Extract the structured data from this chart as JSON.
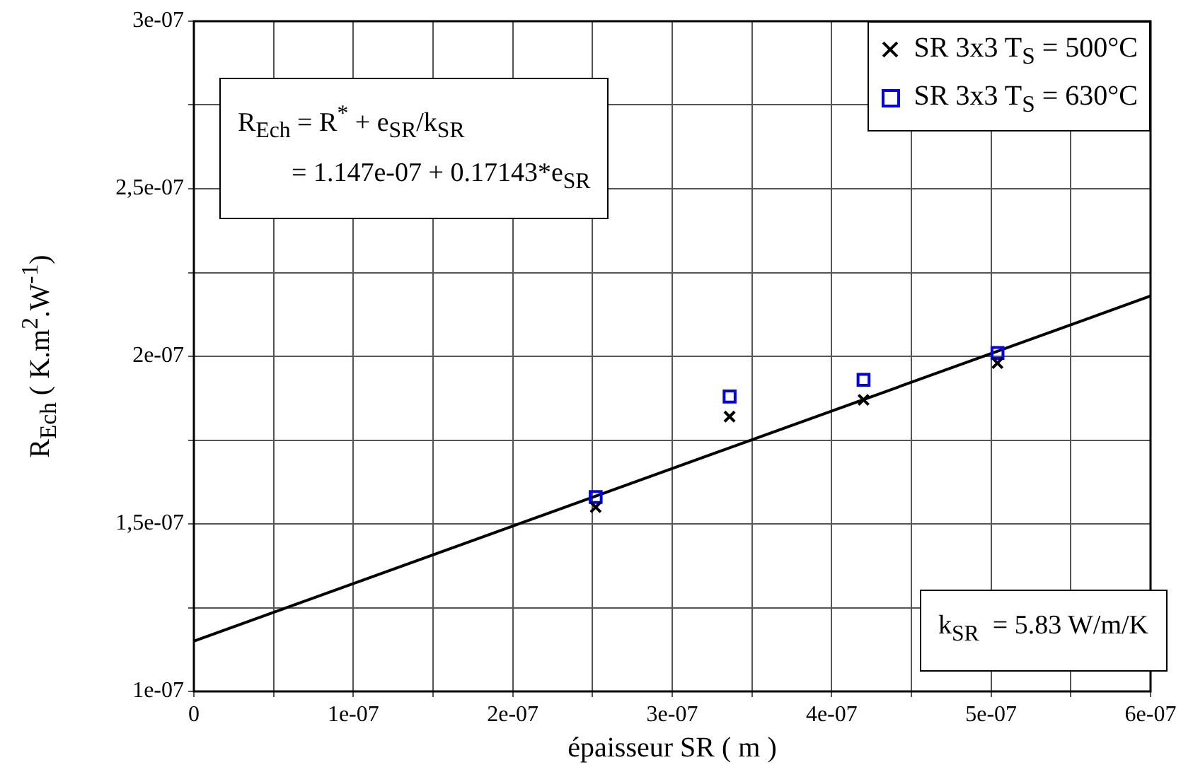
{
  "chart_data": {
    "type": "scatter",
    "xlabel": "épaisseur SR ( m )",
    "ylabel": "R$_{Ech}$  ( K.m$^{2}$.W$^{-1}$)",
    "xlim": [
      0,
      6e-07
    ],
    "ylim": [
      1e-07,
      3e-07
    ],
    "xticks": [
      {
        "value": 0,
        "label": "0"
      },
      {
        "value": 5e-08,
        "label": null
      },
      {
        "value": 1e-07,
        "label": "1e-07"
      },
      {
        "value": 1.5e-07,
        "label": null
      },
      {
        "value": 2e-07,
        "label": "2e-07"
      },
      {
        "value": 2.5e-07,
        "label": null
      },
      {
        "value": 3e-07,
        "label": "3e-07"
      },
      {
        "value": 3.5e-07,
        "label": null
      },
      {
        "value": 4e-07,
        "label": "4e-07"
      },
      {
        "value": 4.5e-07,
        "label": null
      },
      {
        "value": 5e-07,
        "label": "5e-07"
      },
      {
        "value": 5.5e-07,
        "label": null
      },
      {
        "value": 6e-07,
        "label": "6e-07"
      }
    ],
    "yticks": [
      {
        "value": 1e-07,
        "label": "1e-07"
      },
      {
        "value": 1.25e-07,
        "label": null
      },
      {
        "value": 1.5e-07,
        "label": "1,5e-07"
      },
      {
        "value": 1.75e-07,
        "label": null
      },
      {
        "value": 2e-07,
        "label": "2e-07"
      },
      {
        "value": 2.25e-07,
        "label": null
      },
      {
        "value": 2.5e-07,
        "label": "2,5e-07"
      },
      {
        "value": 2.75e-07,
        "label": null
      },
      {
        "value": 3e-07,
        "label": "3e-07"
      }
    ],
    "grid": true,
    "legend": "top right",
    "series": [
      {
        "name": "SR 3x3 T$_{S}$ = 500°C",
        "type": "scatter",
        "marker": "cross",
        "color": "#000000",
        "x": [
          2.52e-07,
          3.36e-07,
          4.2e-07,
          5.04e-07
        ],
        "values": [
          1.55e-07,
          1.82e-07,
          1.87e-07,
          1.98e-07
        ]
      },
      {
        "name": "SR 3x3 T$_{S}$ = 630°C",
        "type": "scatter",
        "marker": "square",
        "color": "#0000ff",
        "x": [
          2.52e-07,
          3.36e-07,
          4.2e-07,
          5.04e-07
        ],
        "values": [
          1.58e-07,
          1.88e-07,
          1.93e-07,
          2.01e-07
        ]
      },
      {
        "type": "line",
        "marker": "none",
        "color": "#000000",
        "x": [
          0,
          6e-07
        ],
        "values": [
          1.15e-07,
          2.18e-07
        ]
      }
    ],
    "annotations": [
      "R$_{Ech}$ = R$^{*}$ + e$_{SR}$/k$_{SR}$\n        = 1.147e-07 + 0.17143*e$_{SR}$",
      "k$_{SR}$  = 5.83 W/m/K"
    ]
  }
}
